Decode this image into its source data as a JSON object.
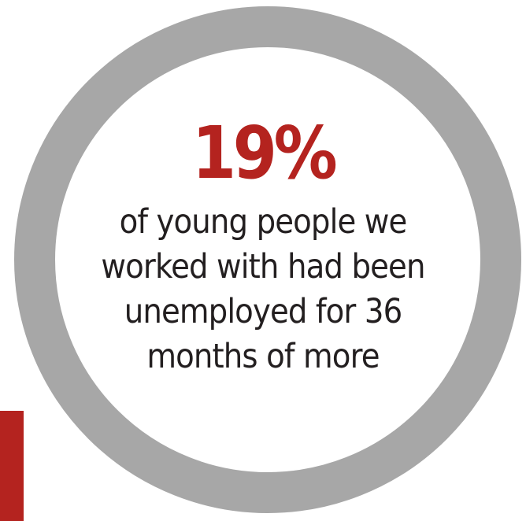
{
  "stat": {
    "value": "19%",
    "caption_lines": [
      "of young people we",
      "worked with had been",
      "unemployed for 36",
      "months of more"
    ]
  },
  "colors": {
    "ring": "#a7a7a7",
    "accent": "#b4231f",
    "text": "#231f20",
    "background": "#ffffff"
  }
}
